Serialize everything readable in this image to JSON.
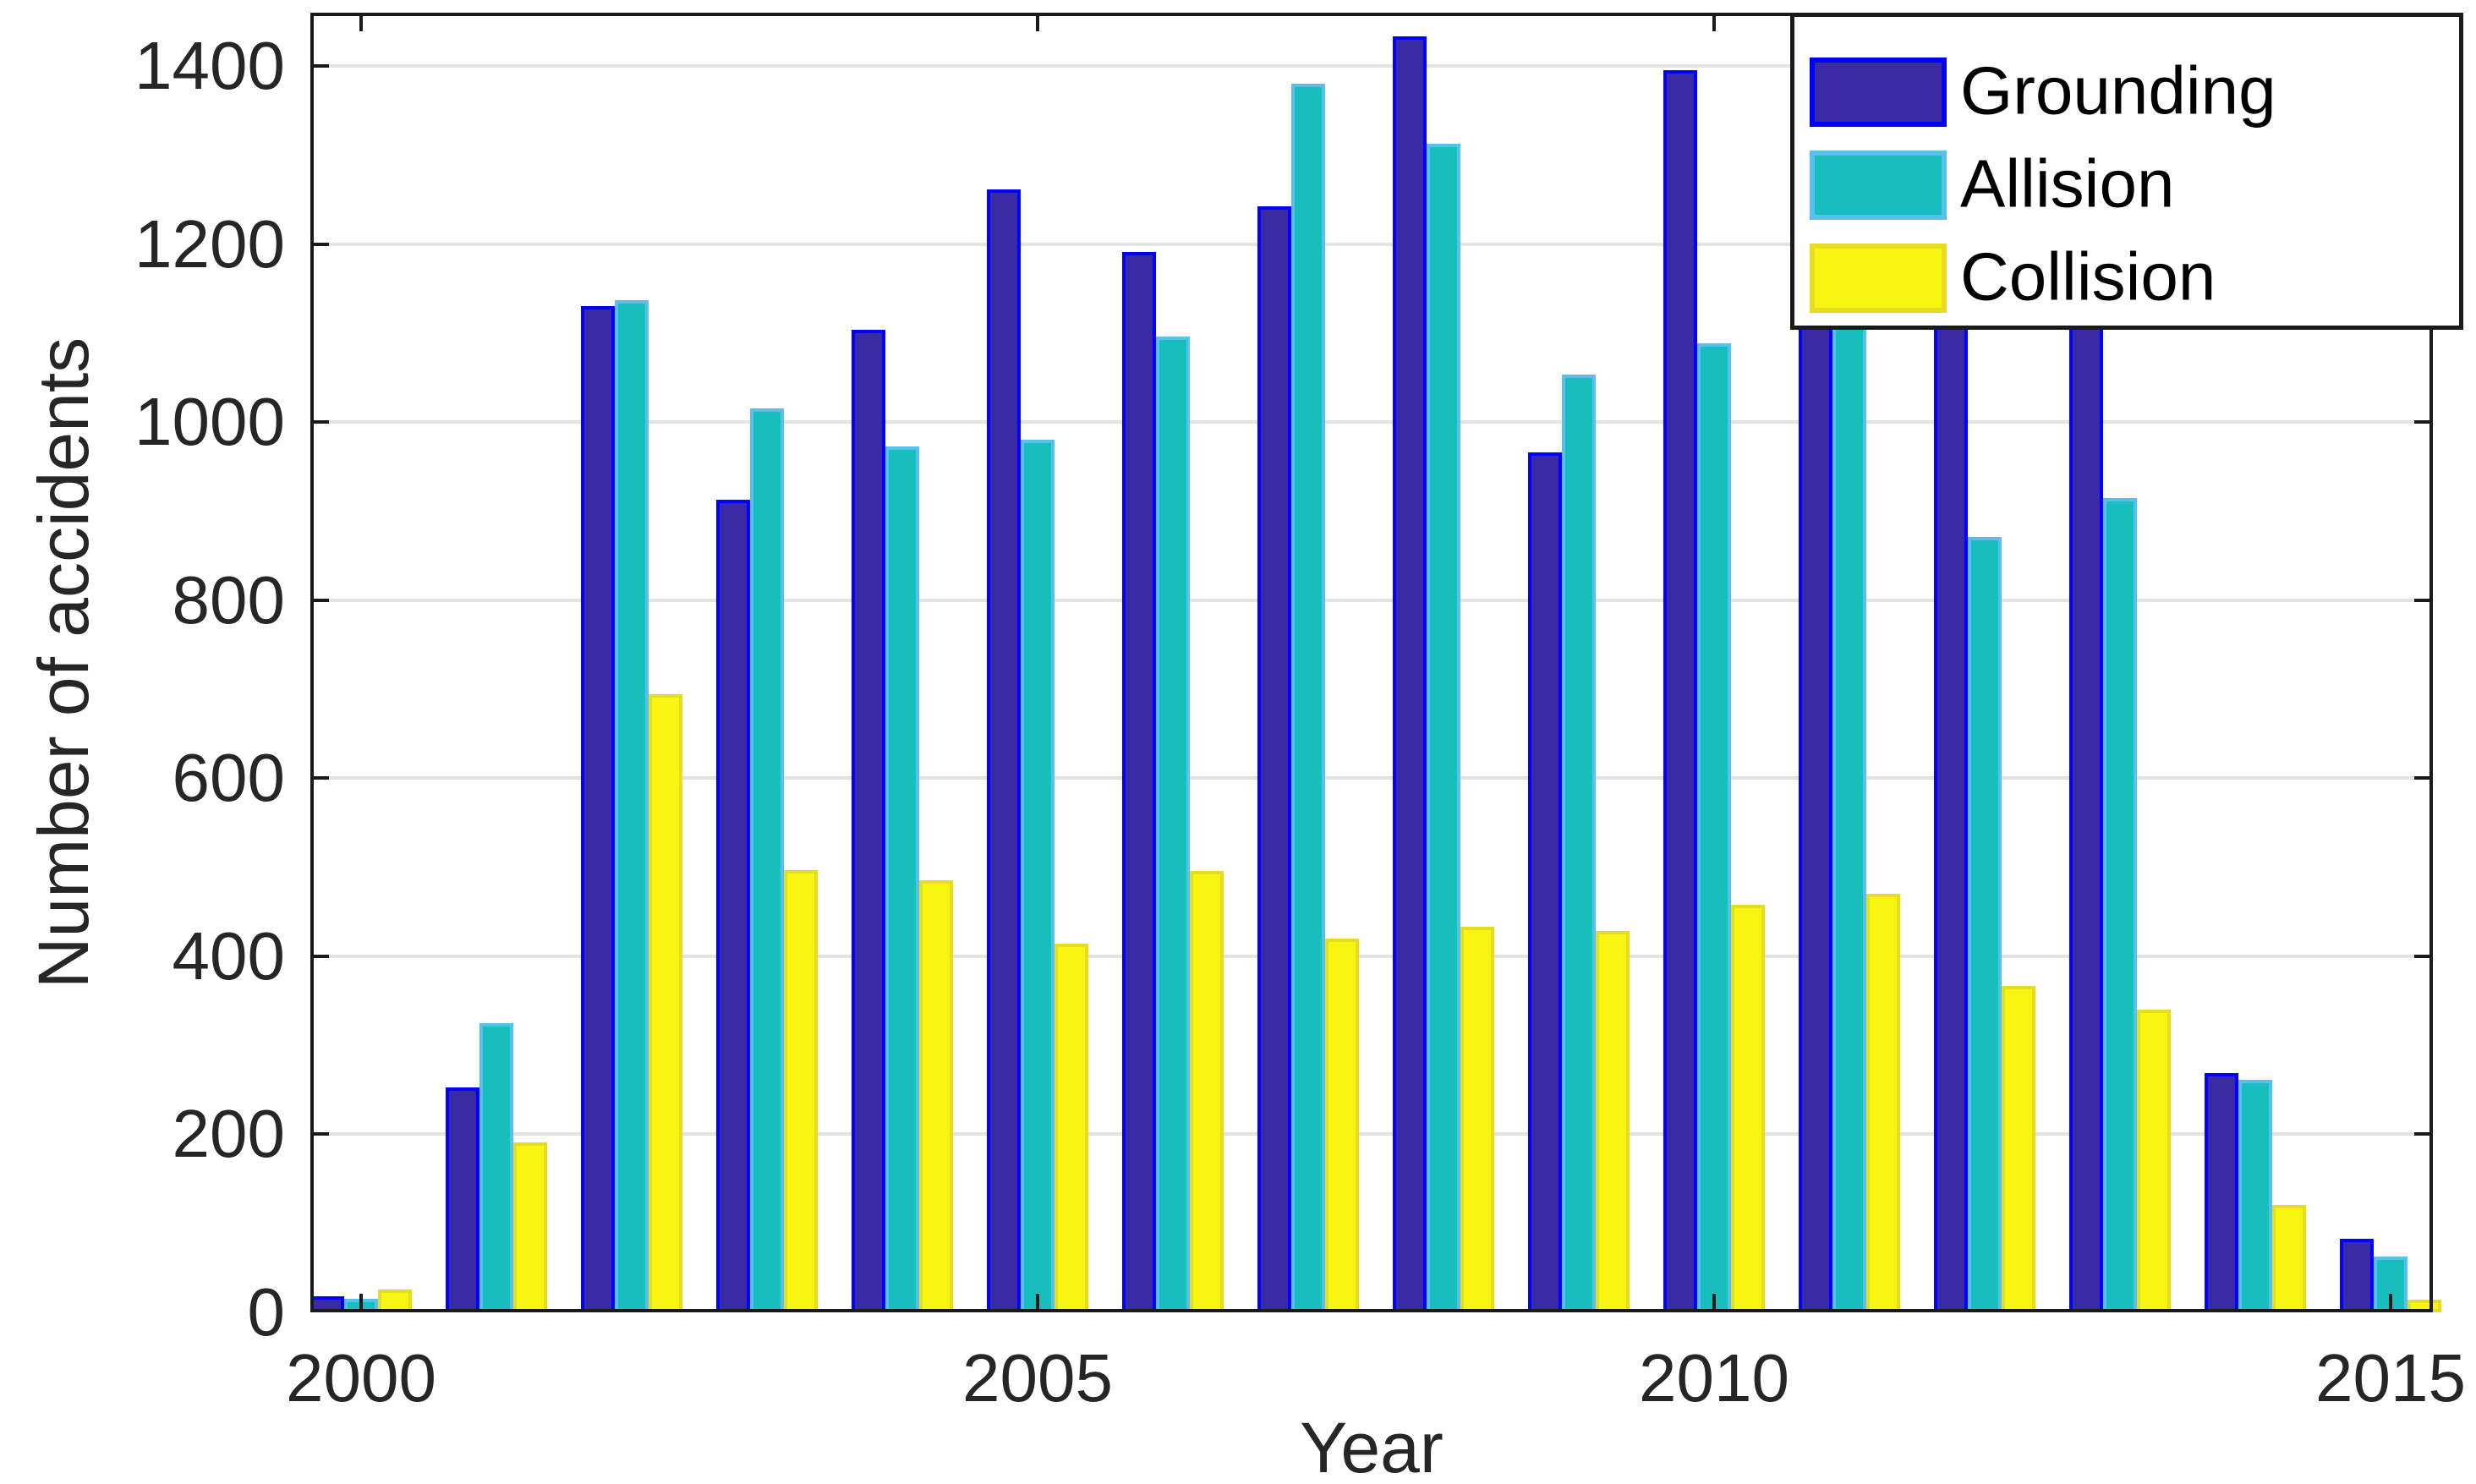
{
  "chart_data": {
    "type": "bar",
    "title": "",
    "xlabel": "Year",
    "ylabel": "Number of accidents",
    "categories": [
      2000,
      2001,
      2002,
      2003,
      2004,
      2005,
      2006,
      2007,
      2008,
      2009,
      2010,
      2011,
      2012,
      2013,
      2014,
      2015
    ],
    "series": [
      {
        "name": "Grounding",
        "fill_color": "#3a2ba5",
        "edge_color": "#0000ff",
        "values": [
          18,
          253,
          1130,
          913,
          1104,
          1261,
          1191,
          1242,
          1433,
          966,
          1395,
          1180,
          1170,
          1160,
          269,
          83
        ]
      },
      {
        "name": "Allision",
        "fill_color": "#18bdbd",
        "edge_color": "#55c2ee",
        "values": [
          15,
          325,
          1137,
          1015,
          973,
          980,
          1096,
          1380,
          1313,
          1053,
          1089,
          1150,
          871,
          915,
          261,
          63
        ]
      },
      {
        "name": "Collision",
        "fill_color": "#f6f610",
        "edge_color": "#e8dc20",
        "values": [
          26,
          191,
          694,
          497,
          485,
          414,
          496,
          420,
          433,
          428,
          458,
          470,
          367,
          340,
          121,
          14
        ]
      }
    ],
    "ylim": [
      0,
      1460
    ],
    "yticks": [
      0,
      200,
      400,
      600,
      800,
      1000,
      1200,
      1400
    ],
    "xticks": [
      2000,
      2005,
      2010,
      2015
    ],
    "grid": "horizontal",
    "gridline_color": "#e3e3e3",
    "axis_color": "#1a1a1a",
    "legend_position": "top-right",
    "legend_labels": [
      "Grounding",
      "Allision",
      "Collision"
    ],
    "notes": "Tops of the Grounding bars for 2011-2013 and the Allision bar for 2011 are hidden behind the legend box; those series values are lower-bound estimates read at the occlusion edge."
  }
}
